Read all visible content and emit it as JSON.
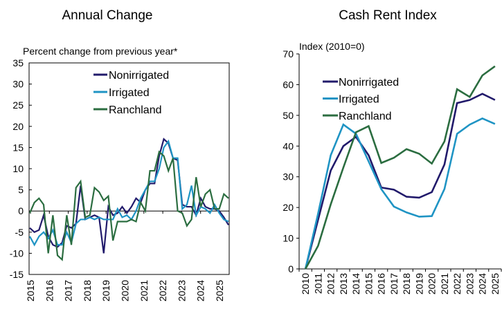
{
  "colors": {
    "Nonirrigated": "#211a6b",
    "Irrigated": "#1f94c4",
    "Ranchland": "#2b6d40"
  },
  "chart_data": [
    {
      "type": "line",
      "title": "Annual Change",
      "ylabel": "Percent change from previous year*",
      "ylim": [
        -15,
        35
      ],
      "yticks": [
        -15,
        -10,
        -5,
        0,
        5,
        10,
        15,
        20,
        25,
        30,
        35
      ],
      "xtick_labels": [
        "2015",
        "2016",
        "2017",
        "2018",
        "2019",
        "2020",
        "2021",
        "2022",
        "2023",
        "2024",
        "2025"
      ],
      "x_frequency": "quarterly",
      "legend_placement": "top-center",
      "series": [
        {
          "name": "Nonirrigated",
          "values": [
            -4,
            -5,
            -4.5,
            -1,
            -6,
            -8,
            -8.5,
            -7.5,
            -3.5,
            -4,
            -3,
            6,
            -2,
            -1.5,
            -1,
            -1.5,
            -10,
            1,
            -1,
            -0.5,
            1,
            -0.5,
            1,
            3,
            2,
            5,
            6.5,
            6.5,
            13,
            17,
            16,
            12.5,
            12,
            1.5,
            1,
            1,
            -1,
            3,
            1,
            0.5,
            0.5,
            0,
            -1.5,
            -3.3
          ]
        },
        {
          "name": "Irrigated",
          "values": [
            -6,
            -8,
            -6,
            -5,
            -6.5,
            -4.5,
            -8,
            -8,
            -5,
            -7.5,
            -3,
            -2,
            -2,
            -1.5,
            -2,
            -1.5,
            -2,
            -2,
            -2,
            0.5,
            -1.5,
            -1,
            -2,
            0,
            3,
            5,
            7,
            7,
            10,
            15,
            16.5,
            12.5,
            12.5,
            0.5,
            1.5,
            6,
            -1,
            1,
            0.5,
            -0.5,
            1.5,
            -0.5,
            -2,
            -2.5
          ]
        },
        {
          "name": "Ranchland",
          "values": [
            -0.5,
            2,
            3,
            1.5,
            -10,
            -1,
            -10.5,
            -11.5,
            -1,
            -8,
            5.5,
            7,
            -1.5,
            -1,
            5.5,
            4.5,
            2.5,
            3.5,
            -7,
            -2.5,
            -2.5,
            -2.5,
            -2,
            -2.5,
            2,
            0,
            9.5,
            9.5,
            14,
            13,
            9.5,
            12.5,
            0,
            -0.5,
            -3.5,
            -2,
            8,
            1,
            4,
            5,
            0.5,
            0.5,
            4,
            3
          ]
        }
      ]
    },
    {
      "type": "line",
      "title": "Cash Rent Index",
      "ylabel": "Index (2010=0)",
      "ylim": [
        0,
        70
      ],
      "yticks": [
        0,
        10,
        20,
        30,
        40,
        50,
        60,
        70
      ],
      "categories": [
        "2010",
        "2011",
        "2012",
        "2013",
        "2014",
        "2015",
        "2016",
        "2017",
        "2018",
        "2019",
        "2020",
        "2021",
        "2022",
        "2023",
        "2024",
        "2025"
      ],
      "legend_placement": "top-left",
      "series": [
        {
          "name": "Nonirrigated",
          "values": [
            0,
            16,
            32,
            40,
            43,
            37,
            26.5,
            25.8,
            23.5,
            23.2,
            25,
            34,
            54,
            55,
            57,
            55
          ]
        },
        {
          "name": "Irrigated",
          "values": [
            0,
            18,
            37,
            47,
            44,
            35,
            26,
            20.3,
            18.4,
            17,
            17.2,
            26,
            44,
            47,
            49,
            47.2
          ]
        },
        {
          "name": "Ranchland",
          "values": [
            0,
            7.5,
            21,
            33,
            44.5,
            46.5,
            34.5,
            36.2,
            39,
            37.5,
            34.3,
            41.5,
            58.5,
            56,
            63,
            66
          ]
        }
      ]
    }
  ]
}
